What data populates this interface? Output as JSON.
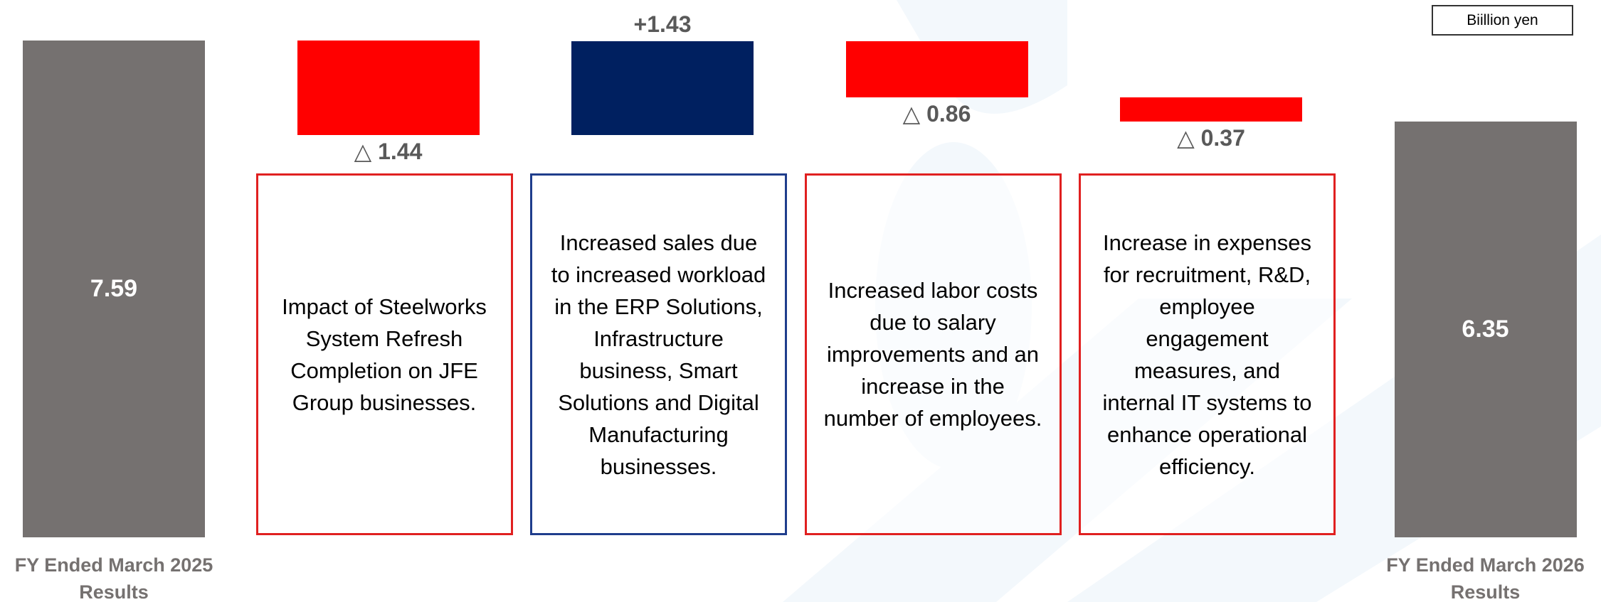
{
  "chart_data": {
    "type": "waterfall",
    "unit": "Biillion yen",
    "categories": [
      "FY Ended March 2025 Results",
      null,
      null,
      null,
      null,
      "FY Ended March 2026 Results"
    ],
    "measure": [
      "total",
      "relative",
      "relative",
      "relative",
      "relative",
      "total"
    ],
    "values": [
      7.59,
      -1.44,
      1.43,
      -0.86,
      -0.37,
      6.35
    ],
    "value_labels": [
      "7.59",
      "△ 1.44",
      "+1.43",
      "△ 0.86",
      "△ 0.37",
      "6.35"
    ],
    "total_color": "#757170",
    "increase_color": "#002060",
    "decrease_color": "#ff0000",
    "annotations": [
      "Impact of Steelworks System Refresh Completion on JFE Group businesses.",
      "Increased sales due to increased workload in the ERP Solutions, Infrastructure business, Smart Solutions and Digital Manufacturing businesses.",
      "Increased labor costs due to salary improvements and an increase in the number of employees.",
      "Increase in expenses for recruitment, R&D, employee engagement measures, and internal IT systems to enhance operational efficiency."
    ]
  }
}
